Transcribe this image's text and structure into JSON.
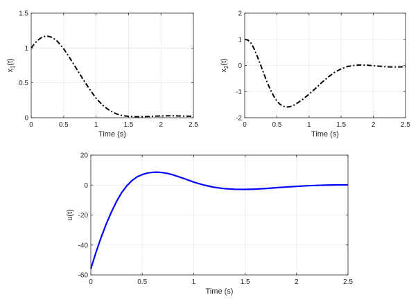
{
  "chart_data": [
    {
      "type": "line",
      "xlabel": "Time (s)",
      "ylabel": {
        "base": "x",
        "sub": "1",
        "suffix": "(t)"
      },
      "xlim": [
        0,
        2.5
      ],
      "ylim": [
        0,
        1.5
      ],
      "xticks": [
        0,
        0.5,
        1,
        1.5,
        2,
        2.5
      ],
      "xtick_labels": [
        "0",
        "0.5",
        "1",
        "1.5",
        "2",
        "2.5"
      ],
      "yticks": [
        0,
        0.5,
        1,
        1.5
      ],
      "ytick_labels": [
        "0",
        "0.5",
        "1",
        "1.5"
      ],
      "grid": true,
      "series": [
        {
          "line_style": "dash-dot",
          "color": "#000000",
          "x": [
            0,
            0.05,
            0.1,
            0.15,
            0.2,
            0.25,
            0.3,
            0.35,
            0.4,
            0.5,
            0.6,
            0.7,
            0.8,
            0.9,
            1.0,
            1.1,
            1.2,
            1.3,
            1.4,
            1.5,
            1.6,
            1.7,
            1.8,
            1.9,
            2.0,
            2.1,
            2.2,
            2.3,
            2.4,
            2.5
          ],
          "y": [
            1.0,
            1.06,
            1.11,
            1.145,
            1.165,
            1.17,
            1.16,
            1.135,
            1.1,
            0.99,
            0.85,
            0.7,
            0.55,
            0.41,
            0.28,
            0.18,
            0.11,
            0.06,
            0.03,
            0.02,
            0.015,
            0.015,
            0.018,
            0.022,
            0.025,
            0.027,
            0.027,
            0.025,
            0.022,
            0.02
          ]
        }
      ]
    },
    {
      "type": "line",
      "xlabel": "Time (s)",
      "ylabel": {
        "base": "x",
        "sub": "2",
        "suffix": "(t)"
      },
      "xlim": [
        0,
        2.5
      ],
      "ylim": [
        -2,
        2
      ],
      "xticks": [
        0,
        0.5,
        1,
        1.5,
        2,
        2.5
      ],
      "xtick_labels": [
        "0",
        "0.5",
        "1",
        "1.5",
        "2",
        "2.5"
      ],
      "yticks": [
        -2,
        -1,
        0,
        1,
        2
      ],
      "ytick_labels": [
        "-2",
        "-1",
        "0",
        "1",
        "2"
      ],
      "grid": true,
      "series": [
        {
          "line_style": "dash-dot",
          "color": "#000000",
          "x": [
            0,
            0.05,
            0.1,
            0.15,
            0.2,
            0.25,
            0.3,
            0.35,
            0.4,
            0.45,
            0.5,
            0.55,
            0.6,
            0.65,
            0.7,
            0.75,
            0.8,
            0.9,
            1.0,
            1.1,
            1.2,
            1.3,
            1.4,
            1.5,
            1.6,
            1.7,
            1.8,
            1.9,
            2.0,
            2.1,
            2.2,
            2.3,
            2.4,
            2.5
          ],
          "y": [
            1.0,
            0.97,
            0.85,
            0.62,
            0.32,
            0.0,
            -0.33,
            -0.65,
            -0.93,
            -1.17,
            -1.36,
            -1.49,
            -1.56,
            -1.59,
            -1.58,
            -1.54,
            -1.47,
            -1.3,
            -1.1,
            -0.88,
            -0.65,
            -0.44,
            -0.26,
            -0.13,
            -0.04,
            0.0,
            0.02,
            0.01,
            -0.01,
            -0.03,
            -0.05,
            -0.06,
            -0.06,
            -0.05
          ]
        }
      ]
    },
    {
      "type": "line",
      "xlabel": "Time (s)",
      "ylabel": {
        "base": "u(t)",
        "sub": "",
        "suffix": ""
      },
      "xlim": [
        0,
        2.5
      ],
      "ylim": [
        -60,
        20
      ],
      "xticks": [
        0,
        0.5,
        1,
        1.5,
        2,
        2.5
      ],
      "xtick_labels": [
        "0",
        "0.5",
        "1",
        "1.5",
        "2",
        "2.5"
      ],
      "yticks": [
        -60,
        -40,
        -20,
        0,
        20
      ],
      "ytick_labels": [
        "-60",
        "-40",
        "-20",
        "0",
        "20"
      ],
      "grid": true,
      "series": [
        {
          "line_style": "solid",
          "color": "#0000ff",
          "x": [
            0,
            0.05,
            0.1,
            0.15,
            0.2,
            0.25,
            0.3,
            0.35,
            0.4,
            0.45,
            0.5,
            0.55,
            0.6,
            0.65,
            0.7,
            0.75,
            0.8,
            0.9,
            1.0,
            1.1,
            1.2,
            1.3,
            1.4,
            1.5,
            1.6,
            1.7,
            1.8,
            1.9,
            2.0,
            2.1,
            2.2,
            2.3,
            2.4,
            2.5
          ],
          "y": [
            -56,
            -45,
            -35,
            -26,
            -18,
            -11,
            -5,
            -0.5,
            3,
            5.5,
            7,
            8,
            8.5,
            8.6,
            8.3,
            7.7,
            6.8,
            4.5,
            2,
            0,
            -1.5,
            -2.4,
            -2.8,
            -2.9,
            -2.7,
            -2.3,
            -1.8,
            -1.3,
            -0.9,
            -0.5,
            -0.2,
            0,
            0.1,
            0.1
          ]
        }
      ]
    }
  ]
}
